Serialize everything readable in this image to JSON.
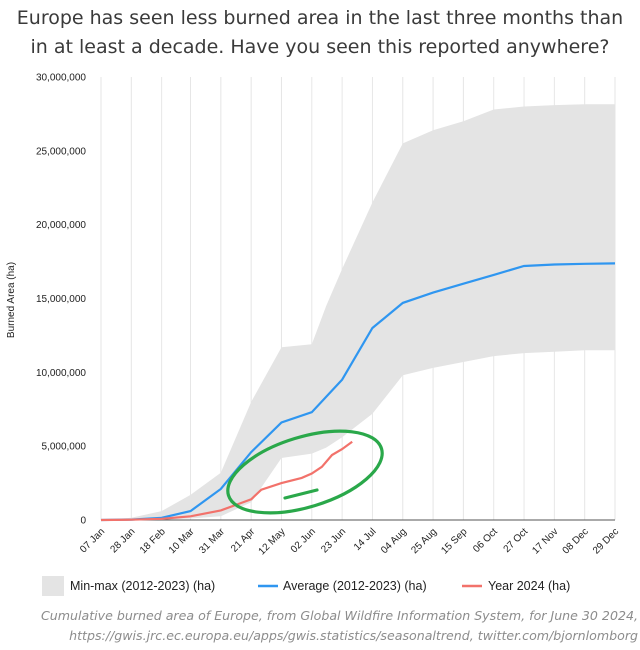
{
  "title_line1": "Europe has seen less burned area in the last three months than",
  "title_line2": "in at least a decade. Have you seen this reported anywhere?",
  "caption_line1": "Cumulative burned area of Europe, from Global Wildfire Information System, for June 30 2024,",
  "caption_line2": "https://gwis.jrc.ec.europa.eu/apps/gwis.statistics/seasonaltrend, twitter.com/bjornlomborg",
  "colors": {
    "band": "#e4e4e4",
    "average": "#2f96f0",
    "year2024": "#f2726b",
    "annotation": "#2aa84a"
  },
  "chart_data": {
    "type": "area",
    "ylabel": "Burned Area (ha)",
    "ylim": [
      0,
      30000000
    ],
    "yticks": [
      0,
      5000000,
      10000000,
      15000000,
      20000000,
      25000000,
      30000000
    ],
    "ytick_labels": [
      "0",
      "5,000,000",
      "10,000,000",
      "15,000,000",
      "20,000,000",
      "25,000,000",
      "30,000,000"
    ],
    "xtick_labels": [
      "07 Jan",
      "28 Jan",
      "18 Feb",
      "10 Mar",
      "31 Mar",
      "21 Apr",
      "12 May",
      "02 Jun",
      "23 Jun",
      "14 Jul",
      "04 Aug",
      "25 Aug",
      "15 Sep",
      "06 Oct",
      "27 Oct",
      "17 Nov",
      "08 Dec",
      "29 Dec"
    ],
    "x_range": [
      "07 Jan",
      "29 Dec"
    ],
    "grid": "vertical",
    "legend_position": "bottom",
    "band": {
      "name": "Min-max (2012-2023) (ha)",
      "x": [
        "07 Jan",
        "28 Jan",
        "18 Feb",
        "10 Mar",
        "31 Mar",
        "21 Apr",
        "12 May",
        "02 Jun",
        "12 Jun",
        "23 Jun",
        "14 Jul",
        "04 Aug",
        "25 Aug",
        "15 Sep",
        "06 Oct",
        "27 Oct",
        "17 Nov",
        "08 Dec",
        "29 Dec"
      ],
      "min": [
        0,
        0,
        20000,
        100000,
        250000,
        1200000,
        4200000,
        4500000,
        4900000,
        5600000,
        7200000,
        9800000,
        10300000,
        10700000,
        11100000,
        11300000,
        11400000,
        11500000,
        11500000
      ],
      "max": [
        0,
        150000,
        600000,
        1700000,
        3200000,
        8000000,
        11700000,
        11900000,
        14500000,
        17000000,
        21500000,
        25500000,
        26400000,
        27000000,
        27800000,
        28000000,
        28100000,
        28150000,
        28150000
      ]
    },
    "series": [
      {
        "name": "Average (2012-2023) (ha)",
        "x": [
          "07 Jan",
          "28 Jan",
          "18 Feb",
          "10 Mar",
          "31 Mar",
          "21 Apr",
          "12 May",
          "02 Jun",
          "23 Jun",
          "14 Jul",
          "04 Aug",
          "25 Aug",
          "15 Sep",
          "06 Oct",
          "27 Oct",
          "17 Nov",
          "08 Dec",
          "29 Dec"
        ],
        "values": [
          0,
          30000,
          150000,
          600000,
          2100000,
          4600000,
          6600000,
          7300000,
          9500000,
          13000000,
          14700000,
          15400000,
          16000000,
          16600000,
          17200000,
          17300000,
          17350000,
          17380000
        ]
      },
      {
        "name": "Year 2024 (ha)",
        "x": [
          "07 Jan",
          "28 Jan",
          "18 Feb",
          "10 Mar",
          "31 Mar",
          "14 Apr",
          "21 Apr",
          "28 Apr",
          "12 May",
          "26 May",
          "02 Jun",
          "09 Jun",
          "16 Jun",
          "23 Jun",
          "30 Jun"
        ],
        "values": [
          0,
          20000,
          80000,
          250000,
          650000,
          1150000,
          1400000,
          2050000,
          2500000,
          2850000,
          3150000,
          3600000,
          4400000,
          4800000,
          5300000
        ]
      }
    ]
  }
}
